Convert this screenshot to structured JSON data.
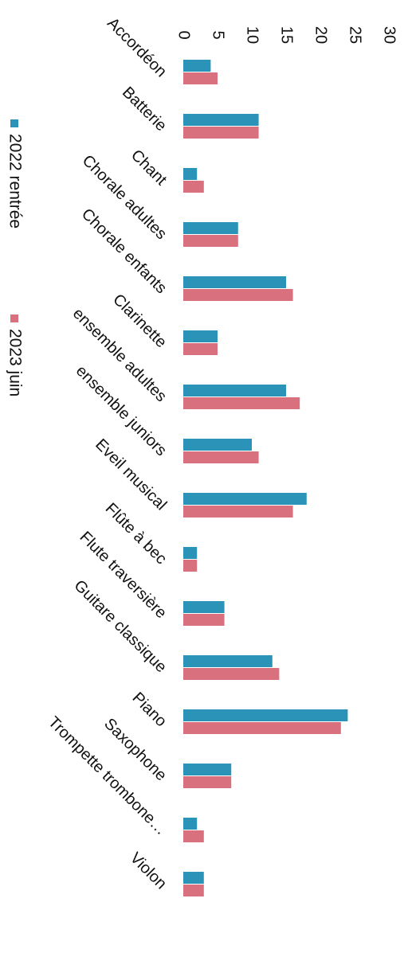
{
  "chart_data": {
    "type": "bar",
    "orientation": "horizontal",
    "categories": [
      "Accordéon",
      "Batterie",
      "Chant",
      "Chorale adultes",
      "Chorale enfants",
      "Clarinette",
      "ensemble adultes",
      "ensemble juniors",
      "Eveil musical",
      "Flûte à bec",
      "Flute traversière",
      "Guitare classique",
      "Piano",
      "Saxophone",
      "Trompette trombone…",
      "Violon"
    ],
    "series": [
      {
        "name": "2022 rentrée",
        "color": "#2b93b8",
        "values": [
          4,
          11,
          2,
          8,
          15,
          5,
          15,
          10,
          18,
          2,
          6,
          13,
          24,
          7,
          2,
          3
        ]
      },
      {
        "name": "2023 juin",
        "color": "#d9707e",
        "values": [
          5,
          11,
          3,
          8,
          16,
          5,
          17,
          11,
          16,
          2,
          6,
          14,
          23,
          7,
          3,
          3
        ]
      }
    ],
    "ticks": [
      "0",
      "5",
      "10",
      "15",
      "20",
      "25",
      "30"
    ],
    "xlim": [
      0,
      30
    ],
    "grid": false,
    "legend_position": "left",
    "rotation": "90deg clockwise"
  }
}
